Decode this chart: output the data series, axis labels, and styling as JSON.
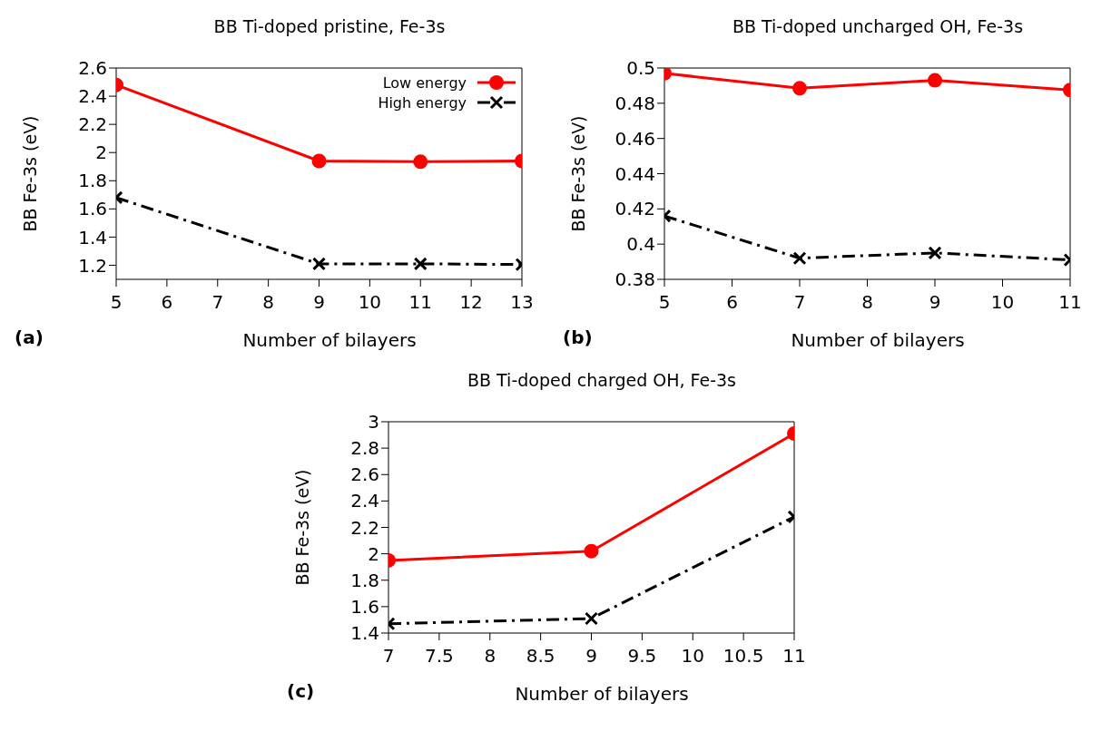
{
  "chart_data": [
    {
      "type": "line",
      "title": "BB Ti-doped pristine, Fe-3s",
      "xlabel": "Number of bilayers",
      "ylabel": "BB Fe-3s (eV)",
      "annotations": [
        "(a)"
      ],
      "x": [
        5,
        9,
        11,
        13
      ],
      "xlim": [
        5,
        13
      ],
      "xticks": [
        5,
        6,
        7,
        8,
        9,
        10,
        11,
        12,
        13
      ],
      "ylim": [
        1.1,
        2.6
      ],
      "yticks": [
        1.2,
        1.4,
        1.6,
        1.8,
        2,
        2.2,
        2.4,
        2.6
      ],
      "grid": false,
      "legend": "top right",
      "series": [
        {
          "name": "Low energy",
          "color": "#ff0000",
          "marker": "circle",
          "line_style": "solid",
          "values": [
            2.48,
            1.94,
            1.935,
            1.94
          ]
        },
        {
          "name": "High energy",
          "color": "#000000",
          "marker": "cross",
          "line_style": "dashed",
          "values": [
            1.68,
            1.21,
            1.21,
            1.205
          ]
        }
      ]
    },
    {
      "type": "line",
      "title": "BB Ti-doped uncharged OH, Fe-3s",
      "xlabel": "Number of bilayers",
      "ylabel": "BB Fe-3s (eV)",
      "annotations": [
        "(b)"
      ],
      "x": [
        5,
        7,
        9,
        11
      ],
      "xlim": [
        5,
        11
      ],
      "xticks": [
        5,
        6,
        7,
        8,
        9,
        10,
        11
      ],
      "ylim": [
        0.38,
        0.5
      ],
      "yticks": [
        0.38,
        0.4,
        0.42,
        0.44,
        0.46,
        0.48,
        0.5
      ],
      "grid": false,
      "legend": false,
      "series": [
        {
          "color": "#ff0000",
          "marker": "circle",
          "line_style": "solid",
          "values": [
            0.497,
            0.4885,
            0.493,
            0.4875
          ]
        },
        {
          "color": "#000000",
          "marker": "cross",
          "line_style": "dashed",
          "values": [
            0.416,
            0.392,
            0.395,
            0.391
          ]
        }
      ]
    },
    {
      "type": "line",
      "title": "BB Ti-doped charged OH, Fe-3s",
      "xlabel": "Number of bilayers",
      "ylabel": "BB Fe-3s (eV)",
      "annotations": [
        "(c)"
      ],
      "x": [
        7,
        9,
        11
      ],
      "xlim": [
        7,
        11
      ],
      "xticks": [
        7,
        7.5,
        8,
        8.5,
        9,
        9.5,
        10,
        10.5,
        11
      ],
      "ylim": [
        1.4,
        3
      ],
      "yticks": [
        1.4,
        1.6,
        1.8,
        2,
        2.2,
        2.4,
        2.6,
        2.8,
        3
      ],
      "grid": false,
      "legend": false,
      "series": [
        {
          "color": "#ff0000",
          "marker": "circle",
          "line_style": "solid",
          "values": [
            1.95,
            2.02,
            2.91
          ]
        },
        {
          "color": "#000000",
          "marker": "cross",
          "line_style": "dashed",
          "values": [
            1.47,
            1.51,
            2.28
          ]
        }
      ]
    }
  ]
}
